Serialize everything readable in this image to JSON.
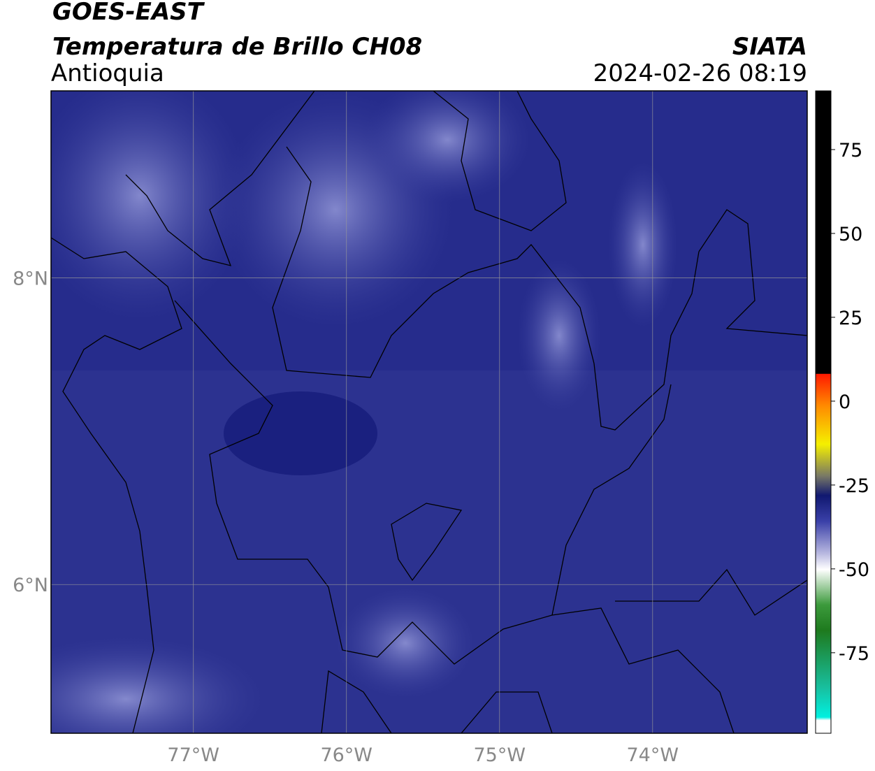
{
  "header": {
    "source": "GOES-EAST",
    "product": "Temperatura de Brillo CH08",
    "region": "Antioquia",
    "agency": "SIATA",
    "datetime": "2024-02-26 08:19"
  },
  "map": {
    "xlim": [
      -77.93,
      -72.99
    ],
    "ylim": [
      5.03,
      9.22
    ],
    "xticks": [
      {
        "value": -77,
        "label": "77°W"
      },
      {
        "value": -76,
        "label": "76°W"
      },
      {
        "value": -75,
        "label": "75°W"
      },
      {
        "value": -74,
        "label": "74°W"
      }
    ],
    "yticks": [
      {
        "value": 8,
        "label": "8°N"
      },
      {
        "value": 6,
        "label": "6°N"
      }
    ]
  },
  "colorbar": {
    "lim": [
      -99,
      92.5
    ],
    "ticks": [
      75,
      50,
      25,
      0,
      -25,
      -50,
      -75
    ]
  }
}
